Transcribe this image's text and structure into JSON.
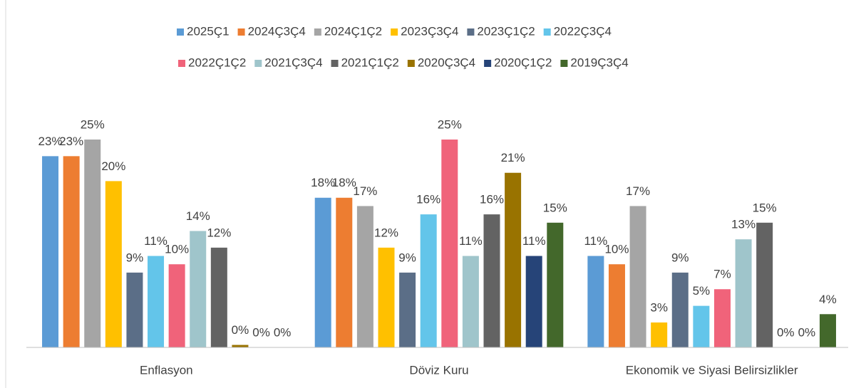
{
  "chart_data": {
    "type": "bar",
    "categories": [
      "Enflasyon",
      "Döviz Kuru",
      "Ekonomik ve Siyasi Belirsizlikler"
    ],
    "ylim": [
      0,
      30
    ],
    "legend": "top",
    "series": [
      {
        "name": "2025Ç1",
        "color": "#5b9bd5",
        "values": [
          23,
          18,
          11
        ],
        "value_labels": [
          "23%",
          "18%",
          "11%"
        ]
      },
      {
        "name": "2024Ç3Ç4",
        "color": "#ed7d31",
        "values": [
          23,
          18,
          10
        ],
        "value_labels": [
          "23%",
          "18%",
          "10%"
        ]
      },
      {
        "name": "2024Ç1Ç2",
        "color": "#a5a5a5",
        "values": [
          25,
          17,
          17
        ],
        "value_labels": [
          "25%",
          "17%",
          "17%"
        ]
      },
      {
        "name": "2023Ç3Ç4",
        "color": "#ffc000",
        "values": [
          20,
          12,
          3
        ],
        "value_labels": [
          "20%",
          "12%",
          "3%"
        ]
      },
      {
        "name": "2023Ç1Ç2",
        "color": "#5b6e87",
        "values": [
          9,
          9,
          9
        ],
        "value_labels": [
          "9%",
          "9%",
          "9%"
        ]
      },
      {
        "name": "2022Ç3Ç4",
        "color": "#63c5ea",
        "values": [
          11,
          16,
          5
        ],
        "value_labels": [
          "11%",
          "16%",
          "5%"
        ]
      },
      {
        "name": "2022Ç1Ç2",
        "color": "#f0637a",
        "values": [
          10,
          25,
          7
        ],
        "value_labels": [
          "10%",
          "25%",
          "7%"
        ]
      },
      {
        "name": "2021Ç3Ç4",
        "color": "#9fc5cb",
        "values": [
          14,
          11,
          13
        ],
        "value_labels": [
          "14%",
          "11%",
          "13%"
        ]
      },
      {
        "name": "2021Ç1Ç2",
        "color": "#636363",
        "values": [
          12,
          16,
          15
        ],
        "value_labels": [
          "12%",
          "16%",
          "15%"
        ]
      },
      {
        "name": "2020Ç3Ç4",
        "color": "#997300",
        "values": [
          0.3,
          21,
          0
        ],
        "value_labels": [
          "0%",
          "21%",
          "0%"
        ]
      },
      {
        "name": "2020Ç1Ç2",
        "color": "#264478",
        "values": [
          0,
          11,
          0
        ],
        "value_labels": [
          "0%",
          "11%",
          "0%"
        ]
      },
      {
        "name": "2019Ç3Ç4",
        "color": "#43682b",
        "values": [
          0,
          15,
          4
        ],
        "value_labels": [
          "0%",
          "15%",
          "4%"
        ]
      }
    ]
  }
}
